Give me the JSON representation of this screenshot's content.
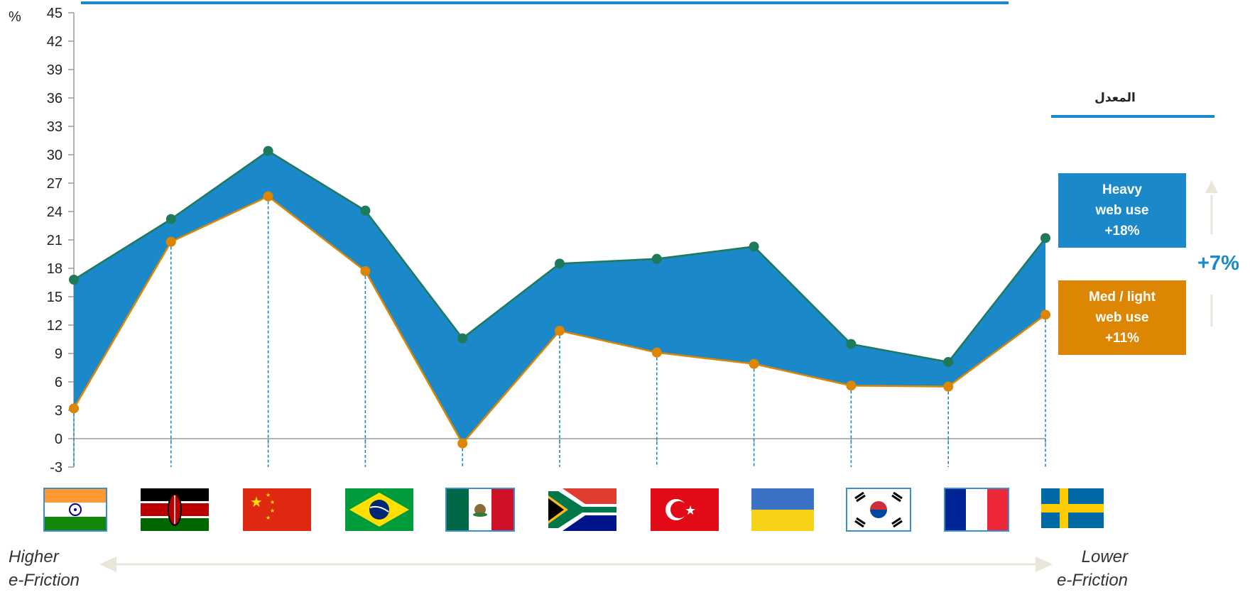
{
  "chart_data": {
    "type": "area",
    "unit_label": "%",
    "ylim": [
      -3,
      45
    ],
    "yticks": [
      -3,
      0,
      3,
      6,
      9,
      12,
      15,
      18,
      21,
      24,
      27,
      30,
      33,
      36,
      39,
      42,
      45
    ],
    "categories": [
      "India",
      "Kenya",
      "China",
      "Brazil",
      "Mexico",
      "South Africa",
      "Turkey",
      "Ukraine",
      "South Korea",
      "France",
      "Sweden"
    ],
    "series": [
      {
        "name": "Heavy web use",
        "color": "#1e7a5a",
        "values": [
          16.8,
          23.2,
          30.4,
          24.1,
          10.6,
          18.5,
          19.0,
          20.3,
          10.0,
          8.1,
          21.2
        ]
      },
      {
        "name": "Med / light web use",
        "color": "#dc8604",
        "values": [
          3.2,
          20.8,
          25.6,
          17.7,
          -0.5,
          11.4,
          9.1,
          7.9,
          5.6,
          5.5,
          13.1
        ]
      }
    ],
    "fill_color": "#1b88c9",
    "grid": false
  },
  "legend": {
    "average_label": "المعدل",
    "heavy_lines": [
      "Heavy",
      "web use",
      "+18%"
    ],
    "light_lines": [
      "Med / light",
      "web use",
      "+11%"
    ],
    "difference": "+7%"
  },
  "friction_axis": {
    "left": [
      "Higher",
      "e-Friction"
    ],
    "right": [
      "Lower",
      "e-Friction"
    ]
  },
  "flags": [
    "india-flag",
    "kenya-flag",
    "china-flag",
    "brazil-flag",
    "mexico-flag",
    "south-africa-flag",
    "turkey-flag",
    "ukraine-flag",
    "south-korea-flag",
    "france-flag",
    "sweden-flag"
  ]
}
